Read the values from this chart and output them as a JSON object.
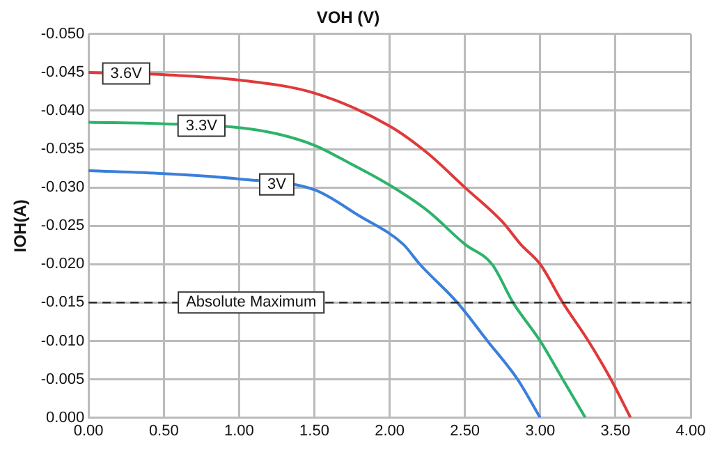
{
  "chart_data": {
    "type": "line",
    "title": "VOH (V)",
    "ylabel": "IOH(A)",
    "series": [
      {
        "name": "3.6V",
        "color": "#e0393b",
        "x": [
          0,
          0.5,
          1.0,
          1.5,
          2.0,
          2.25,
          2.5,
          2.75,
          2.87,
          3.0,
          3.15,
          3.32,
          3.47,
          3.6
        ],
        "values": [
          -0.045,
          -0.0447,
          -0.044,
          -0.0423,
          -0.038,
          -0.0345,
          -0.03,
          -0.0255,
          -0.0226,
          -0.02,
          -0.015,
          -0.01,
          -0.005,
          0
        ]
      },
      {
        "name": "3.3V",
        "color": "#2db36b",
        "x": [
          0,
          0.5,
          1.0,
          1.25,
          1.5,
          1.75,
          2.0,
          2.25,
          2.5,
          2.68,
          2.82,
          3.0,
          3.15,
          3.3
        ],
        "values": [
          -0.0385,
          -0.0383,
          -0.0378,
          -0.037,
          -0.0355,
          -0.033,
          -0.0303,
          -0.027,
          -0.0226,
          -0.02,
          -0.015,
          -0.01,
          -0.005,
          0
        ]
      },
      {
        "name": "3V",
        "color": "#3a7fdb",
        "x": [
          0,
          0.5,
          1.0,
          1.5,
          1.79,
          2.09,
          2.2,
          2.45,
          2.65,
          2.85,
          3.0
        ],
        "values": [
          -0.0322,
          -0.0318,
          -0.0311,
          -0.0297,
          -0.0264,
          -0.0226,
          -0.02,
          -0.015,
          -0.01,
          -0.005,
          0
        ]
      }
    ],
    "xlim": [
      0,
      4
    ],
    "xticks": [
      {
        "value": 0,
        "label": "0.00"
      },
      {
        "value": 0.5,
        "label": "0.50"
      },
      {
        "value": 1,
        "label": "1.00"
      },
      {
        "value": 1.5,
        "label": "1.50"
      },
      {
        "value": 2,
        "label": "2.00"
      },
      {
        "value": 2.5,
        "label": "2.50"
      },
      {
        "value": 3,
        "label": "3.00"
      },
      {
        "value": 3.5,
        "label": "3.50"
      },
      {
        "value": 4,
        "label": "4.00"
      }
    ],
    "ylim": [
      0,
      -0.05
    ],
    "yticks": [
      {
        "value": 0,
        "label": "0.000"
      },
      {
        "value": -0.005,
        "label": "-0.005"
      },
      {
        "value": -0.01,
        "label": "-0.010"
      },
      {
        "value": -0.015,
        "label": "-0.015"
      },
      {
        "value": -0.02,
        "label": "-0.020"
      },
      {
        "value": -0.025,
        "label": "-0.025"
      },
      {
        "value": -0.03,
        "label": "-0.030"
      },
      {
        "value": -0.035,
        "label": "-0.035"
      },
      {
        "value": -0.04,
        "label": "-0.040"
      },
      {
        "value": -0.045,
        "label": "-0.045"
      },
      {
        "value": -0.05,
        "label": "-0.050"
      }
    ],
    "ref_lines": [
      {
        "axis": "y",
        "value": -0.015,
        "label": "Absolute Maximum",
        "color": "#222222",
        "line_style": "dashed"
      }
    ],
    "grid": true,
    "legend": false,
    "marker": "none",
    "line_style": "solid"
  }
}
